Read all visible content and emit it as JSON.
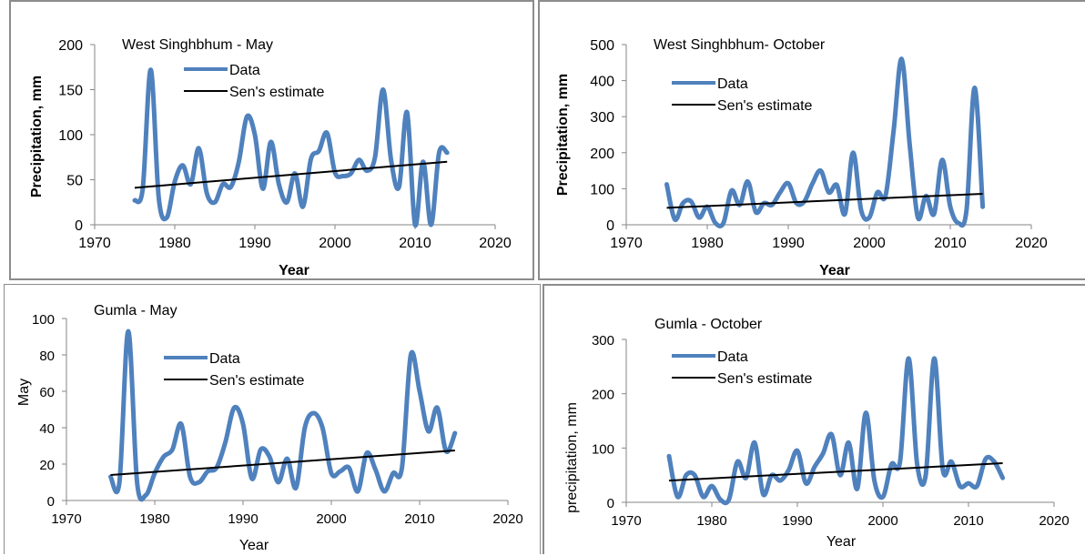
{
  "colors": {
    "data_line": "#4F81BD",
    "sen_line": "#000000",
    "axis": "#868686",
    "border": "#8C8C8C"
  },
  "chart_data": [
    {
      "type": "line",
      "title": "West Singhbhum - May",
      "xlabel": "Year",
      "ylabel": "Precipitation, mm",
      "xlim": [
        1970,
        2020
      ],
      "ylim": [
        0,
        200
      ],
      "x_ticks": [
        "1970",
        "1980",
        "1990",
        "2000",
        "2010",
        "2020"
      ],
      "y_ticks": [
        "0",
        "50",
        "100",
        "150",
        "200"
      ],
      "legend": [
        "Data",
        "Sen's estimate"
      ],
      "legend_position": "top-center",
      "grid": false,
      "series": [
        {
          "name": "Data",
          "x": [
            1975,
            1976,
            1977,
            1978,
            1979,
            1980,
            1981,
            1982,
            1983,
            1984,
            1985,
            1986,
            1987,
            1988,
            1989,
            1990,
            1991,
            1992,
            1993,
            1994,
            1995,
            1996,
            1997,
            1998,
            1999,
            2000,
            2001,
            2002,
            2003,
            2004,
            2005,
            2006,
            2007,
            2008,
            2009,
            2010,
            2011,
            2012,
            2013,
            2014
          ],
          "y": [
            27,
            40,
            172,
            30,
            8,
            48,
            66,
            45,
            85,
            35,
            25,
            45,
            42,
            70,
            120,
            100,
            40,
            92,
            45,
            25,
            57,
            20,
            73,
            82,
            102,
            58,
            54,
            57,
            72,
            60,
            75,
            150,
            72,
            42,
            125,
            0,
            70,
            0,
            80,
            80
          ]
        },
        {
          "name": "Sen's estimate",
          "x": [
            1975,
            2014
          ],
          "y": [
            41,
            70
          ]
        }
      ]
    },
    {
      "type": "line",
      "title": "West Singhbhum- October",
      "xlabel": "Year",
      "ylabel": "Precipitation, mm",
      "xlim": [
        1970,
        2020
      ],
      "ylim": [
        0,
        500
      ],
      "x_ticks": [
        "1970",
        "1980",
        "1990",
        "2000",
        "2010",
        "2020"
      ],
      "y_ticks": [
        "0",
        "100",
        "200",
        "300",
        "400",
        "500"
      ],
      "legend": [
        "Data",
        "Sen's estimate"
      ],
      "legend_position": "top-left",
      "grid": false,
      "series": [
        {
          "name": "Data",
          "x": [
            1975,
            1976,
            1977,
            1978,
            1979,
            1980,
            1981,
            1982,
            1983,
            1984,
            1985,
            1986,
            1987,
            1988,
            1989,
            1990,
            1991,
            1992,
            1993,
            1994,
            1995,
            1996,
            1997,
            1998,
            1999,
            2000,
            2001,
            2002,
            2003,
            2004,
            2005,
            2006,
            2007,
            2008,
            2009,
            2010,
            2011,
            2012,
            2013,
            2014
          ],
          "y": [
            112,
            15,
            60,
            65,
            20,
            50,
            5,
            5,
            95,
            55,
            120,
            35,
            60,
            55,
            90,
            115,
            60,
            65,
            115,
            150,
            90,
            110,
            30,
            200,
            40,
            20,
            90,
            80,
            260,
            460,
            220,
            20,
            80,
            30,
            180,
            50,
            5,
            40,
            380,
            50
          ]
        },
        {
          "name": "Sen's estimate",
          "x": [
            1975,
            2014
          ],
          "y": [
            47,
            86
          ]
        }
      ]
    },
    {
      "type": "line",
      "title": "Gumla - May",
      "xlabel": "Year",
      "ylabel": "May",
      "xlim": [
        1970,
        2020
      ],
      "ylim": [
        0,
        100
      ],
      "x_ticks": [
        "1970",
        "1980",
        "1990",
        "2000",
        "2010",
        "2020"
      ],
      "y_ticks": [
        "0",
        "20",
        "40",
        "60",
        "80",
        "100"
      ],
      "legend": [
        "Data",
        "Sen's estimate"
      ],
      "legend_position": "top-center",
      "grid": false,
      "series": [
        {
          "name": "Data",
          "x": [
            1975,
            1976,
            1977,
            1978,
            1979,
            1980,
            1981,
            1982,
            1983,
            1984,
            1985,
            1986,
            1987,
            1988,
            1989,
            1990,
            1991,
            1992,
            1993,
            1994,
            1995,
            1996,
            1997,
            1998,
            1999,
            2000,
            2001,
            2002,
            2003,
            2004,
            2005,
            2006,
            2007,
            2008,
            2009,
            2010,
            2011,
            2012,
            2013,
            2014
          ],
          "y": [
            13,
            10,
            93,
            10,
            3,
            15,
            24,
            28,
            42,
            13,
            10,
            16,
            18,
            32,
            51,
            42,
            12,
            28,
            24,
            10,
            23,
            7,
            40,
            48,
            40,
            15,
            16,
            18,
            5,
            26,
            17,
            5,
            15,
            18,
            80,
            60,
            38,
            51,
            27,
            37
          ]
        },
        {
          "name": "Sen's estimate",
          "x": [
            1975,
            2014
          ],
          "y": [
            14,
            27.5
          ]
        }
      ]
    },
    {
      "type": "line",
      "title": "Gumla - October",
      "xlabel": "Year",
      "ylabel": "precipitation, mm",
      "xlim": [
        1970,
        2020
      ],
      "ylim": [
        0,
        300
      ],
      "x_ticks": [
        "1970",
        "1980",
        "1990",
        "2000",
        "2010",
        "2020"
      ],
      "y_ticks": [
        "0",
        "100",
        "200",
        "300"
      ],
      "legend": [
        "Data",
        "Sen's estimate"
      ],
      "legend_position": "top-left",
      "grid": false,
      "series": [
        {
          "name": "Data",
          "x": [
            1975,
            1976,
            1977,
            1978,
            1979,
            1980,
            1981,
            1982,
            1983,
            1984,
            1985,
            1986,
            1987,
            1988,
            1989,
            1990,
            1991,
            1992,
            1993,
            1994,
            1995,
            1996,
            1997,
            1998,
            1999,
            2000,
            2001,
            2002,
            2003,
            2004,
            2005,
            2006,
            2007,
            2008,
            2009,
            2010,
            2011,
            2012,
            2013,
            2014
          ],
          "y": [
            85,
            10,
            50,
            50,
            10,
            30,
            5,
            5,
            75,
            45,
            110,
            15,
            50,
            40,
            60,
            95,
            35,
            65,
            90,
            125,
            50,
            110,
            25,
            165,
            40,
            10,
            70,
            75,
            265,
            70,
            50,
            265,
            60,
            75,
            30,
            35,
            30,
            80,
            75,
            45
          ]
        },
        {
          "name": "Sen's estimate",
          "x": [
            1975,
            2014
          ],
          "y": [
            40,
            72
          ]
        }
      ]
    }
  ]
}
